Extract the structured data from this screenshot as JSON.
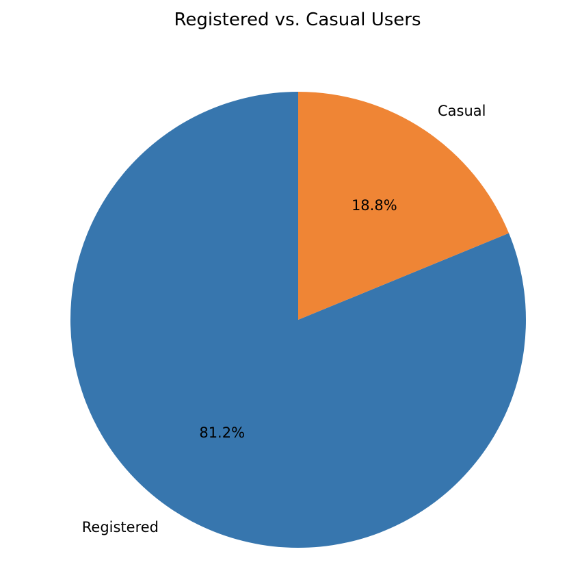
{
  "chart_data": {
    "type": "pie",
    "title": "Registered vs. Casual Users",
    "start_angle_deg": 90,
    "direction": "counterclockwise",
    "slices": [
      {
        "label": "Registered",
        "value": 81.2,
        "pct_label": "81.2%",
        "color": "#3776ae"
      },
      {
        "label": "Casual",
        "value": 18.8,
        "pct_label": "18.8%",
        "color": "#ef8535"
      }
    ]
  }
}
